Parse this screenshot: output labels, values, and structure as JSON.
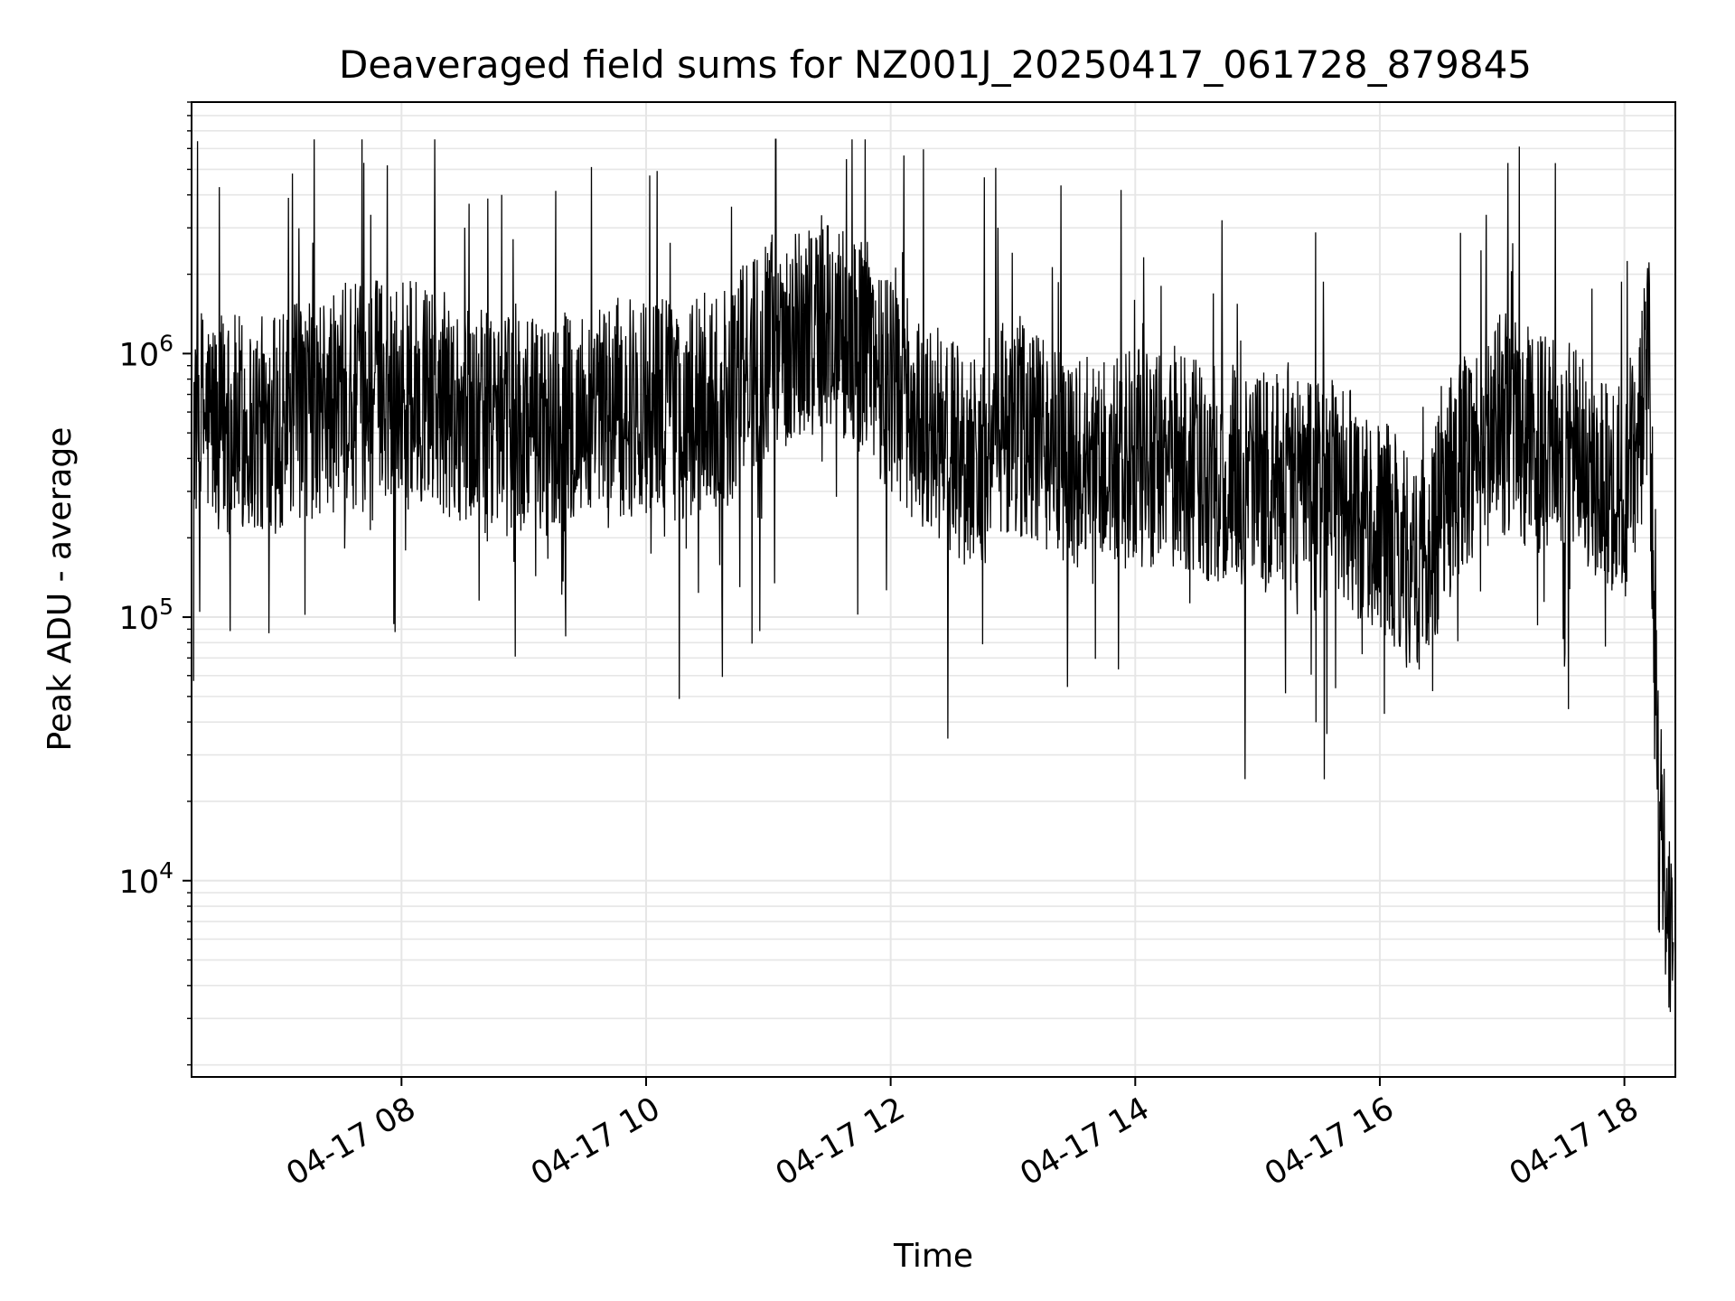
{
  "chart_data": {
    "type": "line",
    "title": "Deaveraged field sums for NZ001J_20250417_061728_879845",
    "xlabel": "Time",
    "ylabel": "Peak ADU - average",
    "yscale": "log",
    "ylim": [
      1800,
      9000000
    ],
    "xlim": [
      "2025-04-17T06:17",
      "2025-04-17T18:25"
    ],
    "grid": true,
    "line_color": "#000000",
    "grid_color": "#e6e6e6",
    "x_ticks": [
      {
        "value": "2025-04-17T08:00",
        "label": "04-17 08"
      },
      {
        "value": "2025-04-17T10:00",
        "label": "04-17 10"
      },
      {
        "value": "2025-04-17T12:00",
        "label": "04-17 12"
      },
      {
        "value": "2025-04-17T14:00",
        "label": "04-17 14"
      },
      {
        "value": "2025-04-17T16:00",
        "label": "04-17 16"
      },
      {
        "value": "2025-04-17T18:00",
        "label": "04-17 18"
      }
    ],
    "y_ticks": [
      {
        "value": 10000,
        "base": "10",
        "exp": "4"
      },
      {
        "value": 100000,
        "base": "10",
        "exp": "5"
      },
      {
        "value": 1000000,
        "base": "10",
        "exp": "6"
      }
    ],
    "series": [
      {
        "x": [
          "2025-04-17T06:18",
          "2025-04-17T06:30",
          "2025-04-17T06:50",
          "2025-04-17T07:10",
          "2025-04-17T07:30",
          "2025-04-17T07:45",
          "2025-04-17T08:00",
          "2025-04-17T08:20",
          "2025-04-17T08:40",
          "2025-04-17T09:00",
          "2025-04-17T09:20",
          "2025-04-17T09:40",
          "2025-04-17T10:00",
          "2025-04-17T10:20",
          "2025-04-17T10:40",
          "2025-04-17T11:00",
          "2025-04-17T11:20",
          "2025-04-17T11:40",
          "2025-04-17T12:00",
          "2025-04-17T12:20",
          "2025-04-17T12:40",
          "2025-04-17T13:00",
          "2025-04-17T13:20",
          "2025-04-17T13:40",
          "2025-04-17T14:00",
          "2025-04-17T14:20",
          "2025-04-17T14:40",
          "2025-04-17T15:00",
          "2025-04-17T15:20",
          "2025-04-17T15:40",
          "2025-04-17T16:00",
          "2025-04-17T16:20",
          "2025-04-17T16:40",
          "2025-04-17T17:00",
          "2025-04-17T17:20",
          "2025-04-17T17:40",
          "2025-04-17T18:00",
          "2025-04-17T18:08",
          "2025-04-17T18:12",
          "2025-04-17T18:16",
          "2025-04-17T18:20",
          "2025-04-17T18:24"
        ],
        "y": [
          600000,
          550000,
          520000,
          600000,
          650000,
          750000,
          750000,
          650000,
          550000,
          500000,
          550000,
          600000,
          650000,
          600000,
          700000,
          1100000,
          1300000,
          1200000,
          800000,
          500000,
          400000,
          550000,
          450000,
          350000,
          400000,
          380000,
          350000,
          330000,
          320000,
          300000,
          220000,
          150000,
          400000,
          550000,
          450000,
          400000,
          300000,
          550000,
          1000000,
          25000,
          12000,
          4000
        ]
      }
    ]
  }
}
